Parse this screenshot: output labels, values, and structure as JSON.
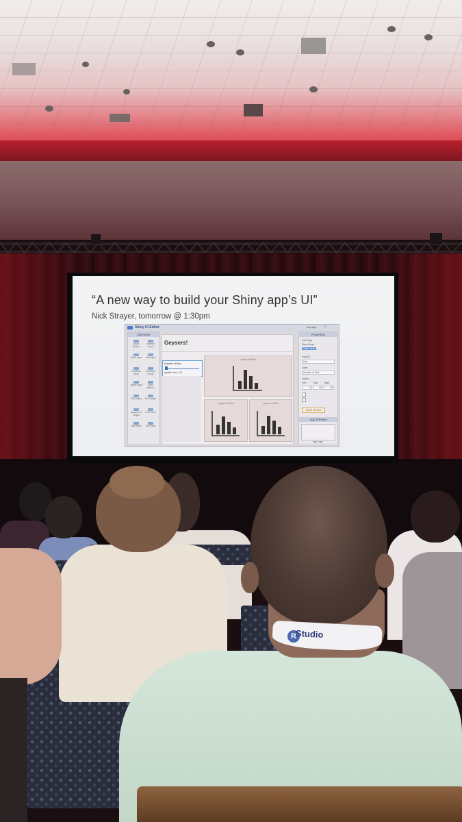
{
  "slide": {
    "title": "“A new way to build your Shiny app’s UI”",
    "subtitle": "Nick Strayer, tomorrow @ 1:30pm"
  },
  "editor": {
    "app_name": "Shiny UI Editor",
    "elements_header": "Elements",
    "elements": [
      "Action Button",
      "Numeric Input",
      "Slider Input",
      "Text Input",
      "Checkbox Input",
      "Checkbox Group",
      "Select Input",
      "Radio Buttons",
      "Plot Output",
      "Text Output",
      "Dynamic UI Output",
      "Grid Panel",
      "Tabs Panel",
      "Plot Panel"
    ],
    "canvas_title": "Geysers!",
    "slider_label": "Number of Bins",
    "slider_value": "inputId: bins = 30",
    "plot_labels": [
      "output: distPlot",
      "output: bluePlot",
      "output: redPlot"
    ],
    "toolbar_undo": "Tour App",
    "properties_header": "Properties",
    "properties": {
      "grid_page": "Grid Page",
      "stack_panel": "Stack Panel",
      "slider_input": "Slider Input",
      "input_id_label": "Input ID",
      "input_id_value": "bins",
      "label_label": "Label",
      "label_value": "Number of Bins",
      "values_label": "Values",
      "min_label": "Min",
      "max_label": "Max",
      "start_label": "Start",
      "min_value": "0",
      "max_value": "50",
      "start_value": "30",
      "remove_button": "Delete Element"
    },
    "preview_header": "App Preview",
    "app_logs": "App Logs"
  },
  "badge": {
    "lanyard_logo": "R",
    "lanyard_text": "Studio"
  },
  "colors": {
    "ceiling_red": "#c62531",
    "screen_white": "#f0f1f3",
    "curtain": "#3b1116",
    "shirt_green": "#cde0d3"
  }
}
